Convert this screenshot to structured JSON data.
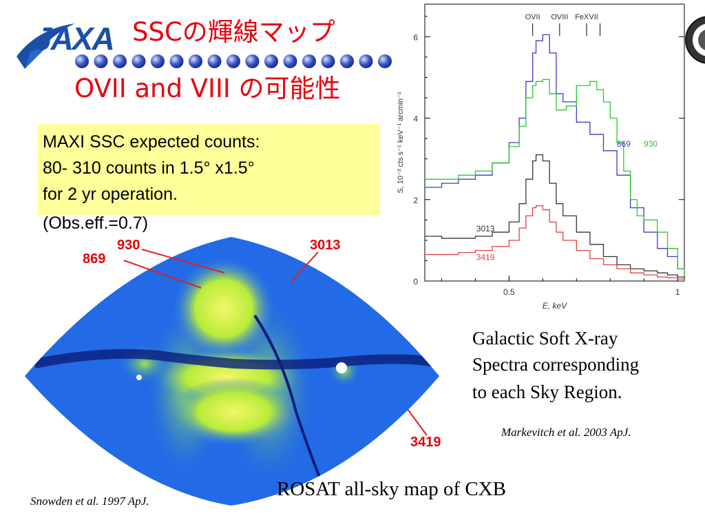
{
  "slide": {
    "logo_text": "JAXA",
    "title_line1": "SSCの輝線マップ",
    "title_line2": "OVII and VIII の可能性",
    "info_lines": [
      "MAXI SSC expected counts:",
      "80- 310 counts in 1.5°  x1.5°",
      "for 2 yr operation.",
      "(Obs.eff.=0.7)"
    ],
    "caption_lines": [
      "Galactic Soft X-ray",
      "Spectra corresponding",
      "to each Sky Region."
    ],
    "caption_reference": "Markevitch et al. 2003 ApJ.",
    "map_caption": "ROSAT all-sky map of CXB",
    "map_reference": "Snowden et al. 1997 ApJ."
  },
  "map_labels": [
    {
      "text": "930",
      "color": "#e60000"
    },
    {
      "text": "869",
      "color": "#e60000"
    },
    {
      "text": "3013",
      "color": "#e60000"
    },
    {
      "text": "3419",
      "color": "#e60000"
    }
  ],
  "chart_data": {
    "type": "line",
    "xlabel": "E, keV",
    "ylabel": "S, 10⁻³ cts s⁻¹ keV⁻¹ arcmin⁻²",
    "xlim": [
      0.25,
      1.02
    ],
    "ylim": [
      0,
      6.8
    ],
    "x_ticks": [
      0.5,
      1
    ],
    "x_tick_labels": [
      "0.5",
      "1"
    ],
    "y_ticks": [
      0,
      2,
      4,
      6
    ],
    "y_tick_labels": [
      "0",
      "2",
      "4",
      "6"
    ],
    "lines_annotations": [
      {
        "label": "OVII",
        "x": 0.57
      },
      {
        "label": "OVIII",
        "x": 0.65
      },
      {
        "label": "FeXVII",
        "x": 0.73
      }
    ],
    "series": [
      {
        "name": "869",
        "color": "#3b3bc4",
        "x": [
          0.25,
          0.3,
          0.35,
          0.4,
          0.45,
          0.5,
          0.53,
          0.55,
          0.57,
          0.58,
          0.6,
          0.62,
          0.64,
          0.66,
          0.7,
          0.74,
          0.78,
          0.82,
          0.86,
          0.9,
          0.94,
          0.97,
          1.0,
          1.02
        ],
        "y": [
          2.3,
          2.4,
          2.5,
          2.6,
          2.9,
          3.4,
          4.0,
          4.9,
          5.6,
          5.9,
          6.05,
          5.6,
          4.6,
          4.4,
          3.9,
          3.6,
          3.2,
          2.6,
          1.8,
          1.2,
          0.8,
          0.6,
          0.3,
          0.05
        ]
      },
      {
        "name": "930",
        "color": "#28c828",
        "x": [
          0.25,
          0.3,
          0.35,
          0.4,
          0.45,
          0.5,
          0.53,
          0.55,
          0.57,
          0.58,
          0.6,
          0.62,
          0.64,
          0.67,
          0.7,
          0.74,
          0.76,
          0.78,
          0.8,
          0.82,
          0.84,
          0.86,
          0.88,
          0.9,
          0.94,
          0.97,
          1.0,
          1.02
        ],
        "y": [
          2.5,
          2.5,
          2.6,
          2.7,
          2.9,
          3.3,
          3.8,
          4.5,
          4.8,
          4.9,
          4.95,
          4.6,
          4.2,
          4.3,
          4.8,
          4.9,
          4.7,
          4.4,
          4.0,
          3.4,
          2.7,
          2.0,
          1.6,
          1.5,
          1.2,
          0.8,
          0.3,
          0.05
        ]
      },
      {
        "name": "3013",
        "color": "#333333",
        "x": [
          0.25,
          0.3,
          0.35,
          0.4,
          0.45,
          0.5,
          0.53,
          0.55,
          0.57,
          0.58,
          0.6,
          0.62,
          0.64,
          0.66,
          0.7,
          0.74,
          0.78,
          0.82,
          0.86,
          0.9,
          0.94,
          0.97,
          1.0,
          1.02
        ],
        "y": [
          1.1,
          1.05,
          1.05,
          1.1,
          1.2,
          1.45,
          1.9,
          2.5,
          2.95,
          3.1,
          2.95,
          2.4,
          1.9,
          1.6,
          1.2,
          0.9,
          0.6,
          0.4,
          0.3,
          0.25,
          0.2,
          0.15,
          0.1,
          0.05
        ]
      },
      {
        "name": "3419",
        "color": "#e04040",
        "x": [
          0.25,
          0.3,
          0.35,
          0.4,
          0.45,
          0.5,
          0.53,
          0.55,
          0.57,
          0.58,
          0.6,
          0.62,
          0.64,
          0.66,
          0.7,
          0.74,
          0.78,
          0.82,
          0.86,
          0.9,
          0.94,
          0.97,
          1.0,
          1.02
        ],
        "y": [
          0.65,
          0.65,
          0.7,
          0.75,
          0.85,
          1.0,
          1.3,
          1.6,
          1.8,
          1.85,
          1.75,
          1.45,
          1.2,
          1.0,
          0.75,
          0.55,
          0.4,
          0.3,
          0.2,
          0.15,
          0.1,
          0.08,
          0.05,
          0.03
        ]
      }
    ]
  }
}
